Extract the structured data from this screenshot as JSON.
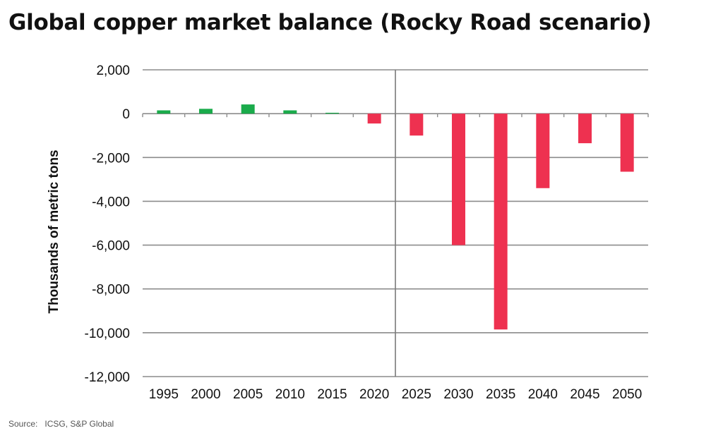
{
  "chart_data": {
    "type": "bar",
    "title": "Global copper market balance (Rocky Road scenario)",
    "ylabel": "Thousands of metric tons",
    "xlabel": "",
    "categories": [
      "1995",
      "2000",
      "2005",
      "2010",
      "2015",
      "2020",
      "2025",
      "2030",
      "2035",
      "2040",
      "2045",
      "2050"
    ],
    "values": [
      150,
      220,
      420,
      150,
      40,
      -450,
      -1000,
      -6000,
      -9850,
      -3400,
      -1350,
      -2650
    ],
    "ylim": [
      -12000,
      2000
    ],
    "yticks": [
      2000,
      0,
      -2000,
      -4000,
      -6000,
      -8000,
      -10000,
      -12000
    ],
    "ytick_labels": [
      "2,000",
      "0",
      "-2,000",
      "-4,000",
      "-6,000",
      "-8,000",
      "-10,000",
      "-12,000"
    ],
    "grid": true,
    "colors": {
      "positive": "#1aab4b",
      "negative": "#ee3150",
      "grid": "#8c8c8c"
    },
    "divider_after_category": "2020"
  },
  "source": "Source:   ICSG, S&P Global"
}
